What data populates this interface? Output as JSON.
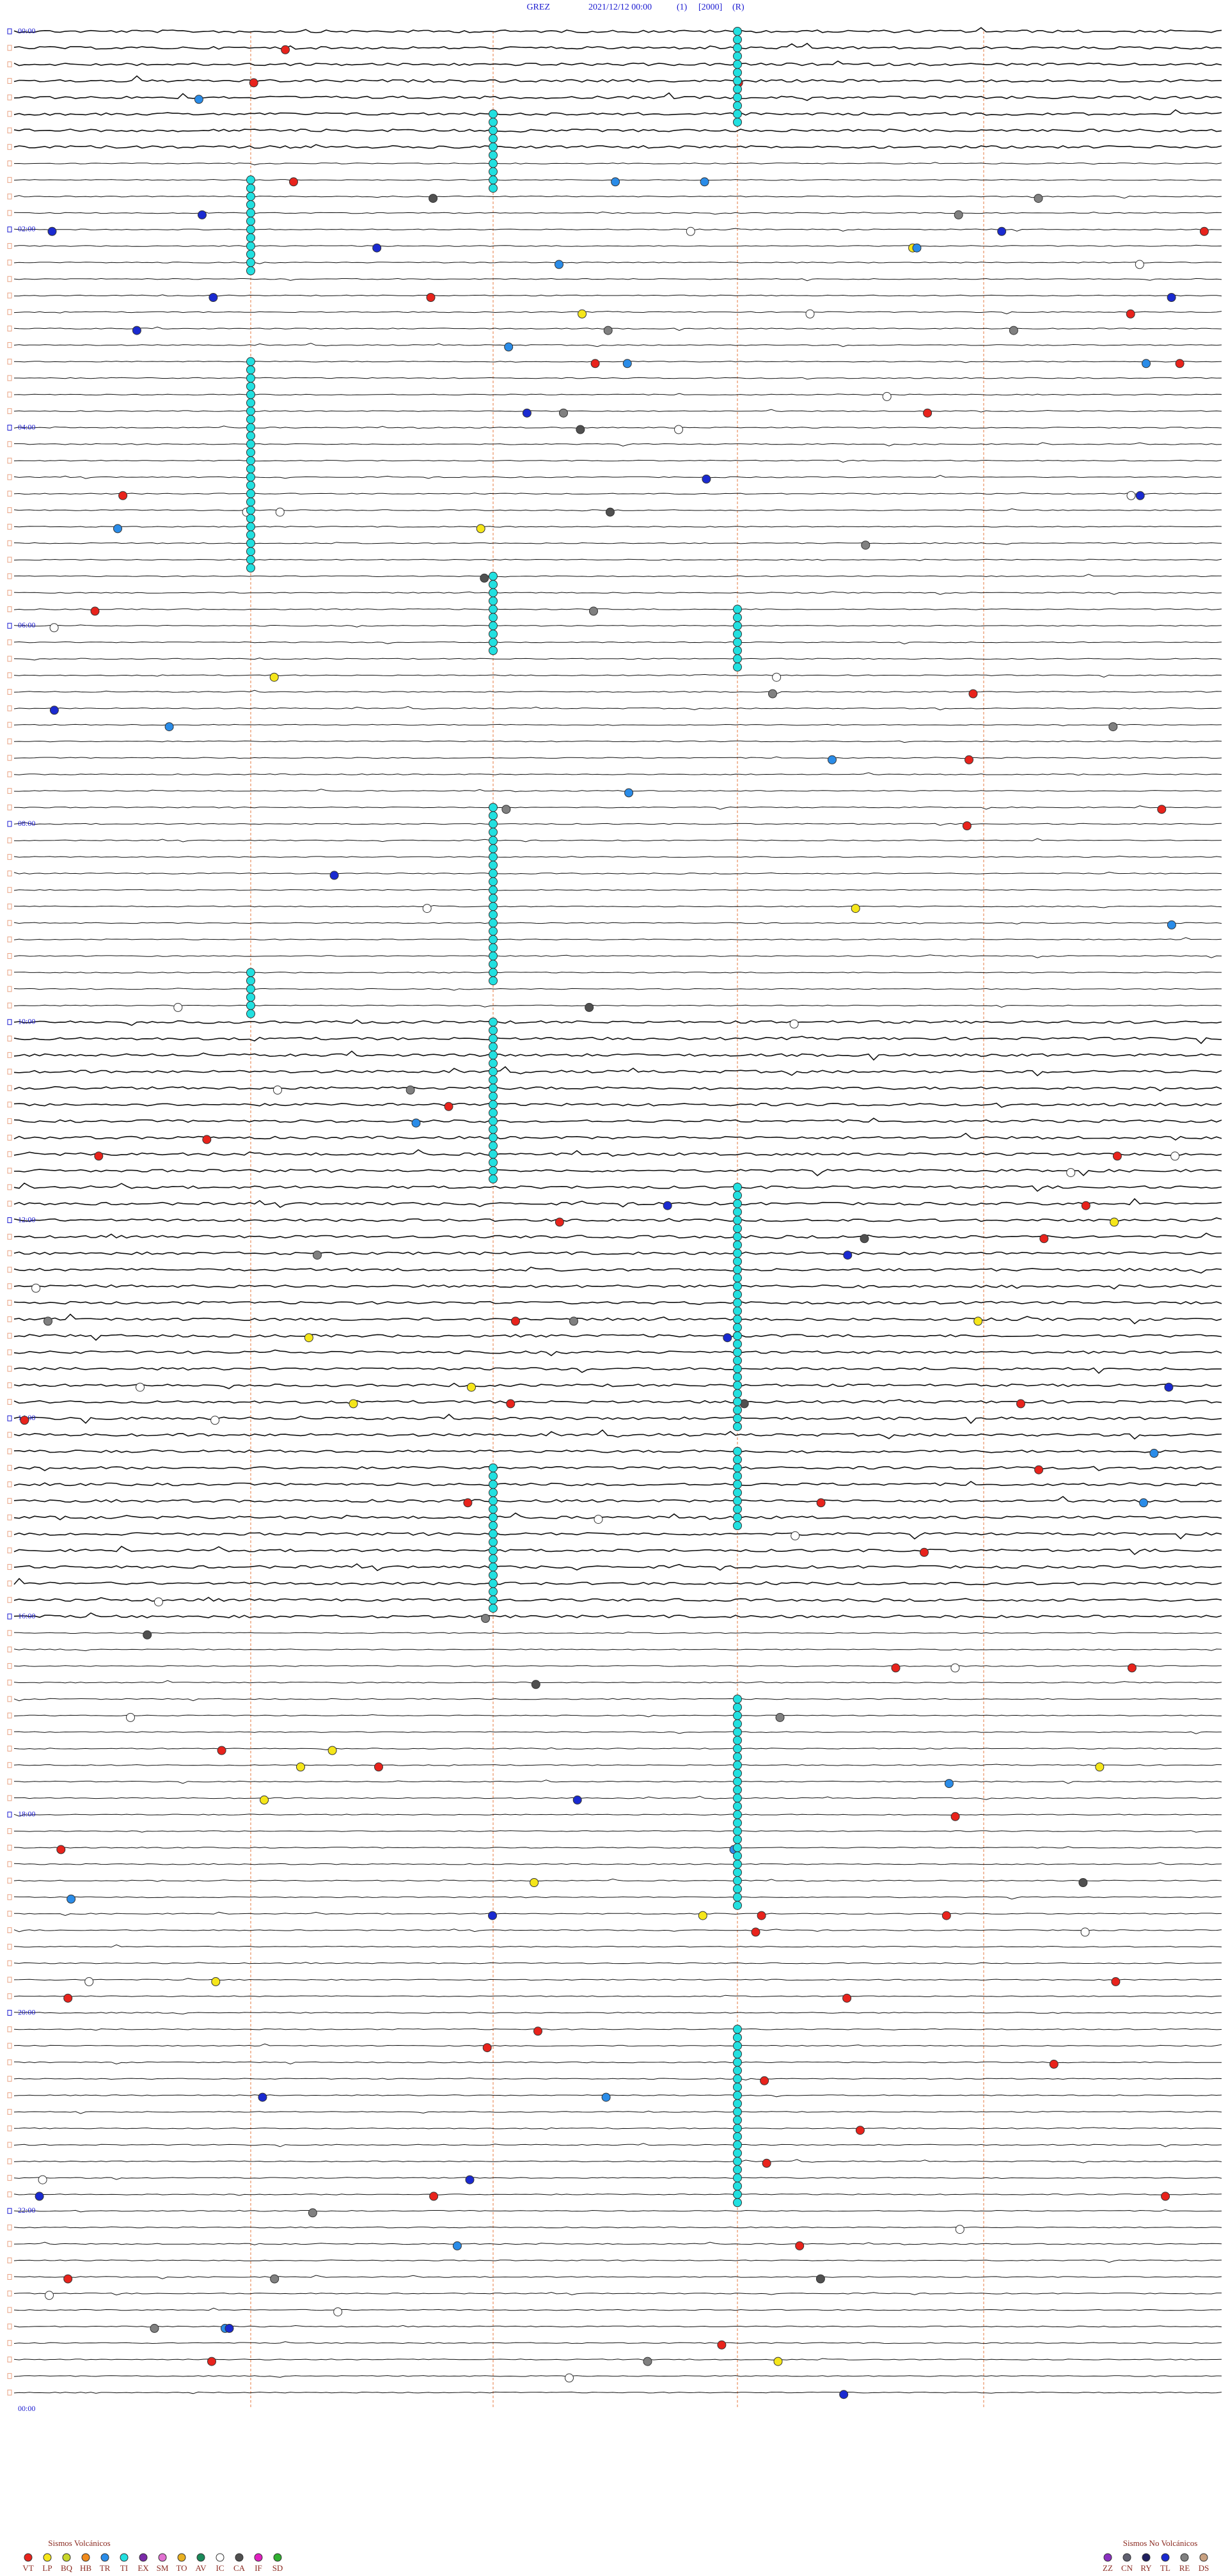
{
  "header": {
    "station": "GREZ",
    "datetime": "2021/12/12 00:00",
    "channel": "(1)",
    "scale": "[2000]",
    "mode": "(R)"
  },
  "time_labels": [
    "00:00",
    "02:00",
    "04:00",
    "06:00",
    "08:00",
    "10:00",
    "12:00",
    "14:00",
    "16:00",
    "18:00",
    "20:00",
    "22:00",
    "00:00"
  ],
  "legend": {
    "volcanic": {
      "title": "Sismos Volcánicos",
      "items": [
        {
          "code": "VT",
          "color": "#e8231c"
        },
        {
          "code": "LP",
          "color": "#f5e61a"
        },
        {
          "code": "BQ",
          "color": "#c8d62a"
        },
        {
          "code": "HB",
          "color": "#f08a1c"
        },
        {
          "code": "TR",
          "color": "#2a8ce8"
        },
        {
          "code": "TI",
          "color": "#22e0e0"
        },
        {
          "code": "EX",
          "color": "#7a2aa8"
        },
        {
          "code": "SM",
          "color": "#e070d0"
        },
        {
          "code": "TO",
          "color": "#e8b020"
        },
        {
          "code": "AV",
          "color": "#1a8a5a"
        },
        {
          "code": "IC",
          "color": "#ffffff"
        },
        {
          "code": "CA",
          "color": "#505050"
        },
        {
          "code": "IF",
          "color": "#e020c0"
        },
        {
          "code": "SD",
          "color": "#30b030"
        }
      ]
    },
    "non_volcanic": {
      "title": "Sismos No Volcánicos",
      "items": [
        {
          "code": "ZZ",
          "color": "#8a30c0"
        },
        {
          "code": "CN",
          "color": "#606070"
        },
        {
          "code": "RY",
          "color": "#202060"
        },
        {
          "code": "TL",
          "color": "#1a2ad0"
        },
        {
          "code": "RE",
          "color": "#808080"
        },
        {
          "code": "DS",
          "color": "#c8a080"
        }
      ]
    }
  }
}
